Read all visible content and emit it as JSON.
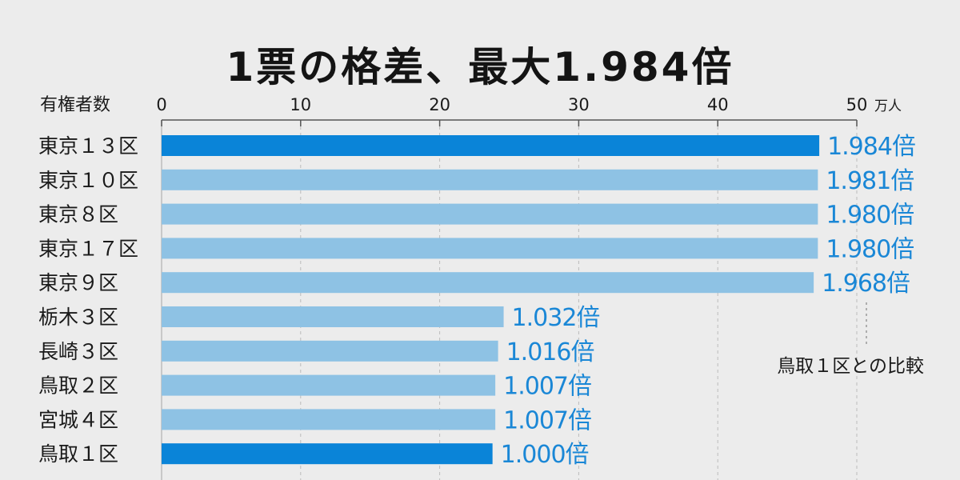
{
  "chart_data": {
    "type": "bar",
    "orientation": "horizontal",
    "title": "1票の格差、最大1.984倍",
    "xlabel": "有権者数",
    "x_unit": "万人",
    "xlim": [
      0,
      50
    ],
    "xticks": [
      "0",
      "10",
      "20",
      "30",
      "40",
      "50"
    ],
    "categories": [
      "東京１３区",
      "東京１０区",
      "東京８区",
      "東京１７区",
      "東京９区",
      "栃木３区",
      "長崎３区",
      "鳥取２区",
      "宮城４区",
      "鳥取１区"
    ],
    "values": [
      47.3,
      47.2,
      47.2,
      47.2,
      46.9,
      24.6,
      24.2,
      24.0,
      24.0,
      23.8
    ],
    "data_labels": [
      "1.984倍",
      "1.981倍",
      "1.980倍",
      "1.980倍",
      "1.968倍",
      "1.032倍",
      "1.016倍",
      "1.007倍",
      "1.007倍",
      "1.000倍"
    ],
    "highlight_indices": [
      0,
      9
    ],
    "annotation": "鳥取１区との比較",
    "grid": true,
    "colors": {
      "highlight": "#0a84d8",
      "normal": "#8ec2e4",
      "label": "#1a87d6",
      "background": "#ececec",
      "grid": "#bcbcbc"
    }
  }
}
